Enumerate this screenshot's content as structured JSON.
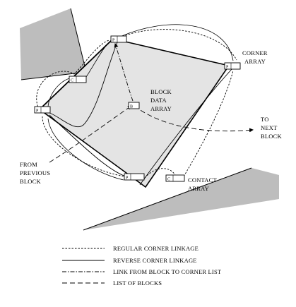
{
  "labels": {
    "corner_array": [
      "CORNER",
      "ARRAY"
    ],
    "block_data_array": [
      "BLOCK",
      "DATA",
      "ARRAY"
    ],
    "to_next_block": [
      "TO",
      "NEXT",
      "BLOCK"
    ],
    "from_previous_block": [
      "FROM",
      "PREVIOUS",
      "BLOCK"
    ],
    "contact_array": [
      "CONTACT",
      "ARRAY"
    ]
  },
  "boxes": {
    "corner_top": "P",
    "corner_right": "P",
    "corner_left": "P",
    "corner_bottom": "P",
    "contact_upper_left": "C",
    "contact_bottom_right": "C",
    "block_data": "B"
  },
  "legend": {
    "regular": "REGULAR CORNER LINKAGE",
    "reverse": "REVERSE CORNER LINKAGE",
    "block_to_corner": "LINK FROM BLOCK TO CORNER LIST",
    "list_of_blocks": "LIST OF BLOCKS"
  },
  "colors": {
    "block_fill": "#e4e4e4",
    "contact_fill": "#bdbdbd",
    "stroke": "#000000"
  }
}
